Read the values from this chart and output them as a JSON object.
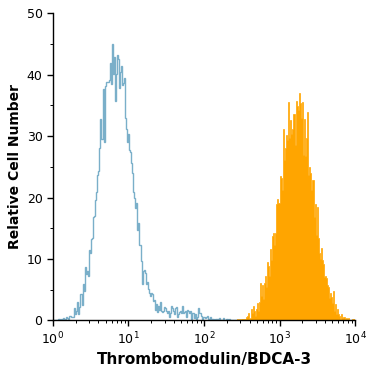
{
  "title": "",
  "xlabel": "Thrombomodulin/BDCA-3",
  "ylabel": "Relative Cell Number",
  "xlim_log": [
    1,
    10000
  ],
  "ylim": [
    0,
    50
  ],
  "yticks": [
    0,
    10,
    20,
    30,
    40,
    50
  ],
  "blue_color": "#7aafc9",
  "orange_color": "#FFA500",
  "blue_peak_log": 0.82,
  "blue_peak_y": 45,
  "blue_log_std": 0.2,
  "orange_peak_log": 3.22,
  "orange_peak_y": 37,
  "orange_log_std": 0.22,
  "n_bins": 300,
  "background_color": "#ffffff",
  "figsize": [
    3.75,
    3.75
  ],
  "dpi": 100
}
